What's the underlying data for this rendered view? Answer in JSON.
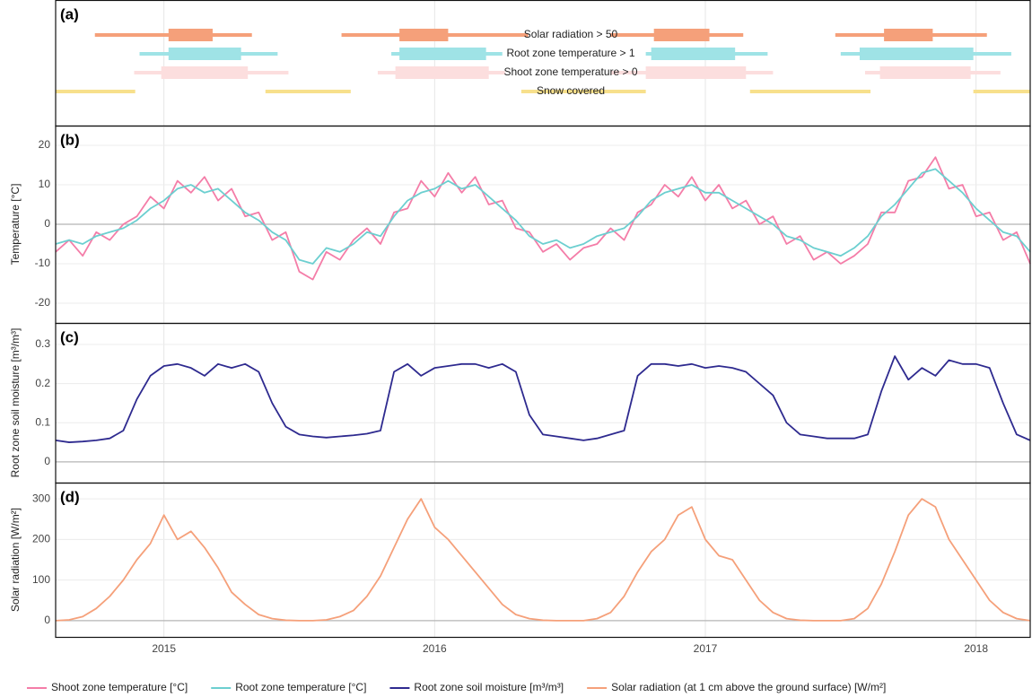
{
  "chart_data": [
    {
      "type": "timeline",
      "panel_label": "(a)",
      "xlim": [
        2014.6,
        2018.2
      ],
      "xticks": [
        2015,
        2016,
        2017,
        2018
      ],
      "rows": [
        {
          "name": "Solar radiation > 50",
          "color": "#f5a07a",
          "thin_intervals": [
            [
              2014.745,
              2015.325
            ],
            [
              2015.656,
              2016.346
            ],
            [
              2016.65,
              2017.14
            ],
            [
              2017.48,
              2018.04
            ]
          ],
          "thick_intervals": [
            [
              2015.017,
              2015.18
            ],
            [
              2015.87,
              2016.05
            ],
            [
              2016.81,
              2017.015
            ],
            [
              2017.66,
              2017.84
            ]
          ]
        },
        {
          "name": "Root zone temperature > 1",
          "color": "#9fe3e6",
          "thin_intervals": [
            [
              2014.91,
              2015.42
            ],
            [
              2015.84,
              2016.25
            ],
            [
              2016.78,
              2017.23
            ],
            [
              2017.5,
              2018.13
            ]
          ],
          "thick_intervals": [
            [
              2015.017,
              2015.285
            ],
            [
              2015.87,
              2016.19
            ],
            [
              2016.8,
              2017.11
            ],
            [
              2017.57,
              2017.99
            ]
          ]
        },
        {
          "name": "Shoot zone temperature > 0",
          "color": "#fcdede",
          "thin_intervals": [
            [
              2014.89,
              2015.46
            ],
            [
              2015.79,
              2016.26
            ],
            [
              2016.65,
              2017.25
            ],
            [
              2017.59,
              2018.09
            ]
          ],
          "thick_intervals": [
            [
              2014.99,
              2015.31
            ],
            [
              2015.855,
              2016.2
            ],
            [
              2016.78,
              2017.15
            ],
            [
              2017.645,
              2017.98
            ]
          ]
        },
        {
          "name": "Snow covered",
          "color": "#f7e08c",
          "thin_intervals": [
            [
              2014.6,
              2014.894
            ],
            [
              2015.375,
              2015.69
            ],
            [
              2016.32,
              2016.78
            ],
            [
              2017.165,
              2017.61
            ],
            [
              2017.99,
              2018.2
            ]
          ],
          "thick_intervals": []
        }
      ]
    },
    {
      "type": "line",
      "panel_label": "(b)",
      "y_label": "Temperature [°C]",
      "xlim": [
        2014.6,
        2018.2
      ],
      "xticks": [
        2015,
        2016,
        2017,
        2018
      ],
      "ylim": [
        -25,
        25
      ],
      "yticks": [
        -20,
        -10,
        0,
        10,
        20
      ],
      "x": [
        2014.6,
        2014.65,
        2014.7,
        2014.75,
        2014.8,
        2014.85,
        2014.9,
        2014.95,
        2015.0,
        2015.05,
        2015.1,
        2015.15,
        2015.2,
        2015.25,
        2015.3,
        2015.35,
        2015.4,
        2015.45,
        2015.5,
        2015.55,
        2015.6,
        2015.65,
        2015.7,
        2015.75,
        2015.8,
        2015.85,
        2015.9,
        2015.95,
        2016.0,
        2016.05,
        2016.1,
        2016.15,
        2016.2,
        2016.25,
        2016.3,
        2016.35,
        2016.4,
        2016.45,
        2016.5,
        2016.55,
        2016.6,
        2016.65,
        2016.7,
        2016.75,
        2016.8,
        2016.85,
        2016.9,
        2016.95,
        2017.0,
        2017.05,
        2017.1,
        2017.15,
        2017.2,
        2017.25,
        2017.3,
        2017.35,
        2017.4,
        2017.45,
        2017.5,
        2017.55,
        2017.6,
        2017.65,
        2017.7,
        2017.75,
        2017.8,
        2017.85,
        2017.9,
        2017.95,
        2018.0,
        2018.05,
        2018.1,
        2018.15,
        2018.2
      ],
      "series": [
        {
          "name": "Shoot zone temperature [°C]",
          "color": "#f47da8",
          "values": [
            -7,
            -4,
            -8,
            -2,
            -4,
            0,
            2,
            7,
            4,
            11,
            8,
            12,
            6,
            9,
            2,
            3,
            -4,
            -2,
            -12,
            -14,
            -7,
            -9,
            -4,
            -1,
            -5,
            3,
            4,
            11,
            7,
            13,
            8,
            12,
            5,
            6,
            -1,
            -2,
            -7,
            -5,
            -9,
            -6,
            -5,
            -1,
            -4,
            3,
            5,
            10,
            7,
            12,
            6,
            10,
            4,
            6,
            0,
            2,
            -5,
            -3,
            -9,
            -7,
            -10,
            -8,
            -5,
            3,
            3,
            11,
            12,
            17,
            9,
            10,
            2,
            3,
            -4,
            -2,
            -10
          ]
        },
        {
          "name": "Root zone temperature [°C]",
          "color": "#6ccfd0",
          "values": [
            -5,
            -4,
            -5,
            -3,
            -2,
            -1,
            1,
            4,
            6,
            9,
            10,
            8,
            9,
            6,
            3,
            1,
            -2,
            -4,
            -9,
            -10,
            -6,
            -7,
            -5,
            -2,
            -3,
            2,
            6,
            8,
            9,
            11,
            9,
            10,
            7,
            4,
            1,
            -3,
            -5,
            -4,
            -6,
            -5,
            -3,
            -2,
            -1,
            2,
            6,
            8,
            9,
            10,
            8,
            8,
            6,
            4,
            2,
            0,
            -3,
            -4,
            -6,
            -7,
            -8,
            -6,
            -3,
            2,
            5,
            9,
            13,
            14,
            11,
            8,
            4,
            1,
            -2,
            -3,
            -7
          ]
        }
      ]
    },
    {
      "type": "line",
      "panel_label": "(c)",
      "y_label": "Root zone soil moisture [m³/m³]",
      "xlim": [
        2014.6,
        2018.2
      ],
      "xticks": [
        2015,
        2016,
        2017,
        2018
      ],
      "ylim": [
        -0.053,
        0.355
      ],
      "yticks": [
        0,
        0.1,
        0.2,
        0.3
      ],
      "x": [
        2014.6,
        2014.65,
        2014.7,
        2014.75,
        2014.8,
        2014.85,
        2014.9,
        2014.95,
        2015.0,
        2015.05,
        2015.1,
        2015.15,
        2015.2,
        2015.25,
        2015.3,
        2015.35,
        2015.4,
        2015.45,
        2015.5,
        2015.55,
        2015.6,
        2015.65,
        2015.7,
        2015.75,
        2015.8,
        2015.85,
        2015.9,
        2015.95,
        2016.0,
        2016.05,
        2016.1,
        2016.15,
        2016.2,
        2016.25,
        2016.3,
        2016.35,
        2016.4,
        2016.45,
        2016.5,
        2016.55,
        2016.6,
        2016.65,
        2016.7,
        2016.75,
        2016.8,
        2016.85,
        2016.9,
        2016.95,
        2017.0,
        2017.05,
        2017.1,
        2017.15,
        2017.2,
        2017.25,
        2017.3,
        2017.35,
        2017.4,
        2017.45,
        2017.5,
        2017.55,
        2017.6,
        2017.65,
        2017.7,
        2017.75,
        2017.8,
        2017.85,
        2017.9,
        2017.95,
        2018.0,
        2018.05,
        2018.1,
        2018.15,
        2018.2
      ],
      "series": [
        {
          "name": "Root zone soil moisture [m³/m³]",
          "color": "#2e2a8f",
          "values": [
            0.055,
            0.05,
            0.052,
            0.055,
            0.06,
            0.08,
            0.16,
            0.22,
            0.245,
            0.25,
            0.24,
            0.22,
            0.25,
            0.24,
            0.25,
            0.23,
            0.15,
            0.09,
            0.07,
            0.065,
            0.062,
            0.065,
            0.068,
            0.072,
            0.08,
            0.23,
            0.25,
            0.22,
            0.24,
            0.245,
            0.25,
            0.25,
            0.24,
            0.25,
            0.23,
            0.12,
            0.07,
            0.065,
            0.06,
            0.055,
            0.06,
            0.07,
            0.08,
            0.22,
            0.25,
            0.25,
            0.245,
            0.25,
            0.24,
            0.245,
            0.24,
            0.23,
            0.2,
            0.17,
            0.1,
            0.07,
            0.065,
            0.06,
            0.06,
            0.06,
            0.07,
            0.18,
            0.27,
            0.21,
            0.24,
            0.22,
            0.26,
            0.25,
            0.25,
            0.24,
            0.15,
            0.07,
            0.055
          ]
        }
      ]
    },
    {
      "type": "line",
      "panel_label": "(d)",
      "y_label": "Solar radiation [W/m²]",
      "xlim": [
        2014.6,
        2018.2
      ],
      "xticks": [
        2015,
        2016,
        2017,
        2018
      ],
      "ylim": [
        -40,
        340
      ],
      "yticks": [
        0,
        100,
        200,
        300
      ],
      "x": [
        2014.6,
        2014.65,
        2014.7,
        2014.75,
        2014.8,
        2014.85,
        2014.9,
        2014.95,
        2015.0,
        2015.05,
        2015.1,
        2015.15,
        2015.2,
        2015.25,
        2015.3,
        2015.35,
        2015.4,
        2015.45,
        2015.5,
        2015.55,
        2015.6,
        2015.65,
        2015.7,
        2015.75,
        2015.8,
        2015.85,
        2015.9,
        2015.95,
        2016.0,
        2016.05,
        2016.1,
        2016.15,
        2016.2,
        2016.25,
        2016.3,
        2016.35,
        2016.4,
        2016.45,
        2016.5,
        2016.55,
        2016.6,
        2016.65,
        2016.7,
        2016.75,
        2016.8,
        2016.85,
        2016.9,
        2016.95,
        2017.0,
        2017.05,
        2017.1,
        2017.15,
        2017.2,
        2017.25,
        2017.3,
        2017.35,
        2017.4,
        2017.45,
        2017.5,
        2017.55,
        2017.6,
        2017.65,
        2017.7,
        2017.75,
        2017.8,
        2017.85,
        2017.9,
        2017.95,
        2018.0,
        2018.05,
        2018.1,
        2018.15,
        2018.2
      ],
      "series": [
        {
          "name": "Solar radiation (at 1 cm above the ground surface) [W/m²]",
          "color": "#f5a07a",
          "values": [
            0,
            2,
            10,
            30,
            60,
            100,
            150,
            190,
            260,
            200,
            220,
            180,
            130,
            70,
            40,
            15,
            5,
            1,
            0,
            0,
            2,
            10,
            25,
            60,
            110,
            180,
            250,
            300,
            230,
            200,
            160,
            120,
            80,
            40,
            15,
            5,
            1,
            0,
            0,
            0,
            5,
            20,
            60,
            120,
            170,
            200,
            260,
            280,
            200,
            160,
            150,
            100,
            50,
            20,
            5,
            1,
            0,
            0,
            0,
            5,
            30,
            90,
            170,
            260,
            300,
            280,
            200,
            150,
            100,
            50,
            20,
            5,
            0
          ]
        }
      ]
    }
  ]
}
